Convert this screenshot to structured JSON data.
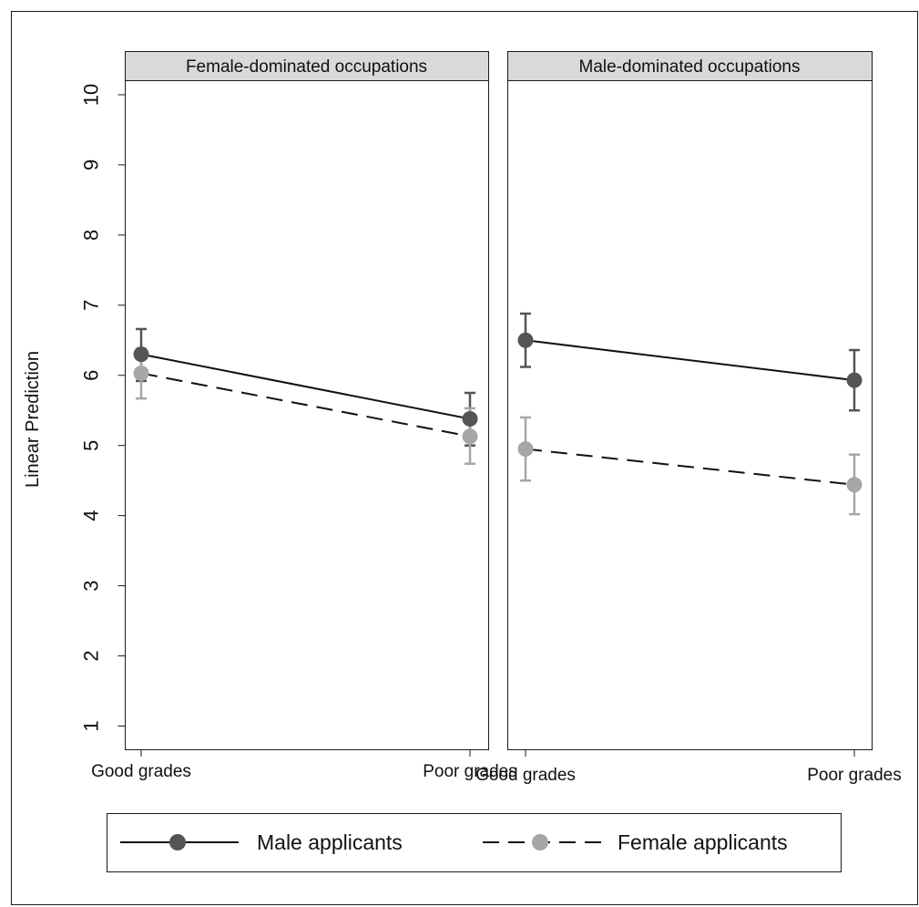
{
  "chart_data": {
    "type": "line",
    "ylabel": "Linear Prediction",
    "ylim": [
      1,
      10
    ],
    "yticks": [
      1,
      2,
      3,
      4,
      5,
      6,
      7,
      8,
      9,
      10
    ],
    "categories": [
      "Good grades",
      "Poor grades"
    ],
    "grid": true,
    "legend_position": "bottom",
    "panels": [
      {
        "title": "Female-dominated occupations",
        "series": [
          {
            "name": "Male applicants",
            "color": "#555555",
            "line_style": "solid",
            "values": [
              6.3,
              5.38
            ],
            "ci_low": [
              5.92,
              5.0
            ],
            "ci_high": [
              6.66,
              5.75
            ]
          },
          {
            "name": "Female applicants",
            "color": "#a6a6a6",
            "line_style": "dashed",
            "values": [
              6.03,
              5.13
            ],
            "ci_low": [
              5.67,
              4.74
            ],
            "ci_high": [
              6.38,
              5.53
            ]
          }
        ]
      },
      {
        "title": "Male-dominated occupations",
        "series": [
          {
            "name": "Male applicants",
            "color": "#555555",
            "line_style": "solid",
            "values": [
              6.5,
              5.93
            ],
            "ci_low": [
              6.12,
              5.5
            ],
            "ci_high": [
              6.88,
              6.36
            ]
          },
          {
            "name": "Female applicants",
            "color": "#a6a6a6",
            "line_style": "dashed",
            "values": [
              4.95,
              4.44
            ],
            "ci_low": [
              4.5,
              4.02
            ],
            "ci_high": [
              5.4,
              4.87
            ]
          }
        ]
      }
    ],
    "legend": [
      {
        "name": "Male applicants",
        "color": "#555555",
        "line_style": "solid"
      },
      {
        "name": "Female applicants",
        "color": "#a6a6a6",
        "line_style": "dashed"
      }
    ]
  }
}
